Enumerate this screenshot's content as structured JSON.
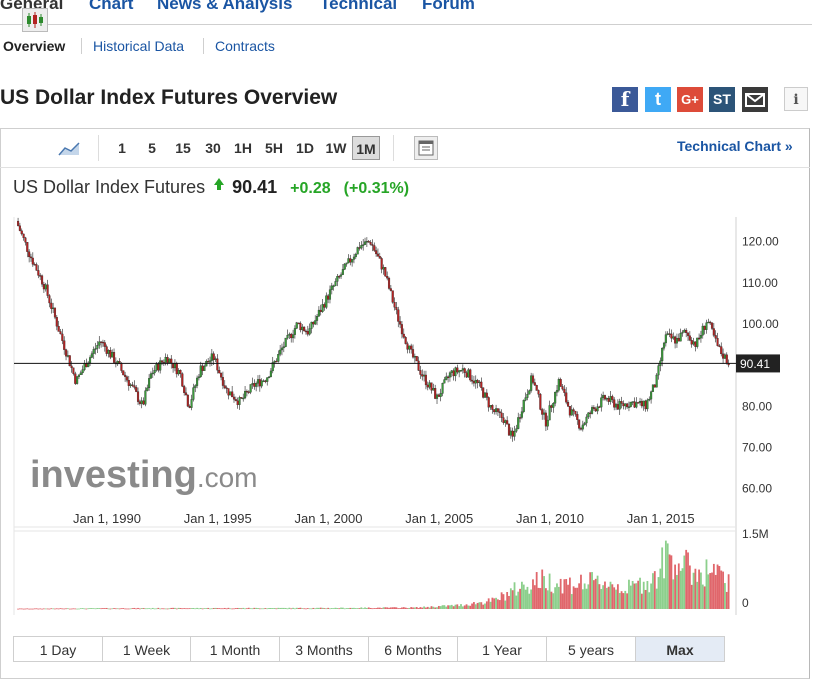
{
  "nav": {
    "tabs": [
      {
        "label": "General",
        "active": true
      },
      {
        "label": "Chart"
      },
      {
        "label": "News & Analysis"
      },
      {
        "label": "Technical"
      },
      {
        "label": "Forum"
      }
    ],
    "subtabs": [
      {
        "label": "Overview",
        "active": true
      },
      {
        "label": "Historical Data"
      },
      {
        "label": "Contracts"
      }
    ]
  },
  "page_title": "US Dollar Index Futures Overview",
  "share": {
    "facebook": "f",
    "twitter": "t",
    "google": "G+",
    "stocktwits": "ST",
    "email": "mail-icon",
    "info": "i"
  },
  "toolbar": {
    "intervals": [
      "1",
      "5",
      "15",
      "30",
      "1H",
      "5H",
      "1D",
      "1W",
      "1M"
    ],
    "active_interval": "1M",
    "technical_chart_label": "Technical Chart »"
  },
  "instrument": {
    "name": "US Dollar Index Futures",
    "price": "90.41",
    "change": "+0.28",
    "change_pct": "(+0.31%)",
    "direction": "up",
    "up_color": "#26a526"
  },
  "watermark": {
    "brand": "investing",
    "suffix": ".com"
  },
  "chart_data": {
    "type": "candlestick",
    "x_tick_labels": [
      "Jan 1, 1990",
      "Jan 1, 1995",
      "Jan 1, 2000",
      "Jan 1, 2005",
      "Jan 1, 2010",
      "Jan 1, 2015"
    ],
    "y_tick_labels": [
      "120.00",
      "110.00",
      "100.00",
      "90.00",
      "80.00",
      "70.00",
      "60.00"
    ],
    "ylim": [
      56,
      126
    ],
    "xlim": [
      1985.8,
      2018.4
    ],
    "last_price_label": "90.41",
    "last_price": 90.41,
    "colors": {
      "up": "#3a9a3a",
      "down": "#b22222",
      "volume_up": "#8ccf8c",
      "volume_down": "#e0666b"
    },
    "price_path": [
      [
        1985.9,
        125
      ],
      [
        1986.5,
        117
      ],
      [
        1987.2,
        109
      ],
      [
        1987.8,
        99
      ],
      [
        1988.6,
        86
      ],
      [
        1989.0,
        90
      ],
      [
        1989.7,
        96
      ],
      [
        1990.5,
        90
      ],
      [
        1991.2,
        84
      ],
      [
        1991.6,
        80
      ],
      [
        1992.0,
        88
      ],
      [
        1992.7,
        92
      ],
      [
        1993.3,
        88
      ],
      [
        1993.7,
        80
      ],
      [
        1994.2,
        89
      ],
      [
        1994.8,
        92
      ],
      [
        1995.4,
        84
      ],
      [
        1996.0,
        81
      ],
      [
        1996.6,
        85
      ],
      [
        1997.2,
        87
      ],
      [
        1997.9,
        94
      ],
      [
        1998.6,
        100
      ],
      [
        1999.1,
        98
      ],
      [
        1999.6,
        103
      ],
      [
        2000.1,
        108
      ],
      [
        2000.8,
        114
      ],
      [
        2001.4,
        119
      ],
      [
        2001.9,
        120
      ],
      [
        2002.5,
        113
      ],
      [
        2003.1,
        102
      ],
      [
        2003.7,
        93
      ],
      [
        2004.3,
        87
      ],
      [
        2004.9,
        82
      ],
      [
        2005.5,
        88
      ],
      [
        2006.1,
        89
      ],
      [
        2006.8,
        85
      ],
      [
        2007.4,
        79
      ],
      [
        2007.9,
        77
      ],
      [
        2008.3,
        72
      ],
      [
        2008.8,
        81
      ],
      [
        2009.2,
        87
      ],
      [
        2009.8,
        76
      ],
      [
        2010.4,
        86
      ],
      [
        2010.9,
        79
      ],
      [
        2011.4,
        75
      ],
      [
        2011.9,
        79
      ],
      [
        2012.5,
        82
      ],
      [
        2013.1,
        80
      ],
      [
        2013.7,
        81
      ],
      [
        2014.3,
        80
      ],
      [
        2014.8,
        86
      ],
      [
        2015.2,
        97
      ],
      [
        2015.7,
        96
      ],
      [
        2016.1,
        98
      ],
      [
        2016.6,
        95
      ],
      [
        2017.1,
        101
      ],
      [
        2017.6,
        94
      ],
      [
        2018.1,
        90.41
      ]
    ],
    "volume_ylim": [
      0,
      1500000
    ],
    "volume_tick_labels": [
      "1.5M",
      "0"
    ],
    "volume_path": [
      [
        1985.9,
        8000
      ],
      [
        1990.0,
        15000
      ],
      [
        1995.0,
        18000
      ],
      [
        2000.0,
        20000
      ],
      [
        2004.0,
        30000
      ],
      [
        2006.0,
        80000
      ],
      [
        2007.5,
        180000
      ],
      [
        2008.5,
        420000
      ],
      [
        2009.5,
        600000
      ],
      [
        2011.0,
        520000
      ],
      [
        2012.5,
        560000
      ],
      [
        2013.5,
        420000
      ],
      [
        2014.8,
        650000
      ],
      [
        2015.3,
        1150000
      ],
      [
        2015.9,
        950000
      ],
      [
        2016.6,
        750000
      ],
      [
        2017.3,
        800000
      ],
      [
        2018.2,
        480000
      ]
    ]
  },
  "ranges": {
    "items": [
      "1 Day",
      "1 Week",
      "1 Month",
      "3 Months",
      "6 Months",
      "1 Year",
      "5 years",
      "Max"
    ],
    "active": "Max"
  }
}
